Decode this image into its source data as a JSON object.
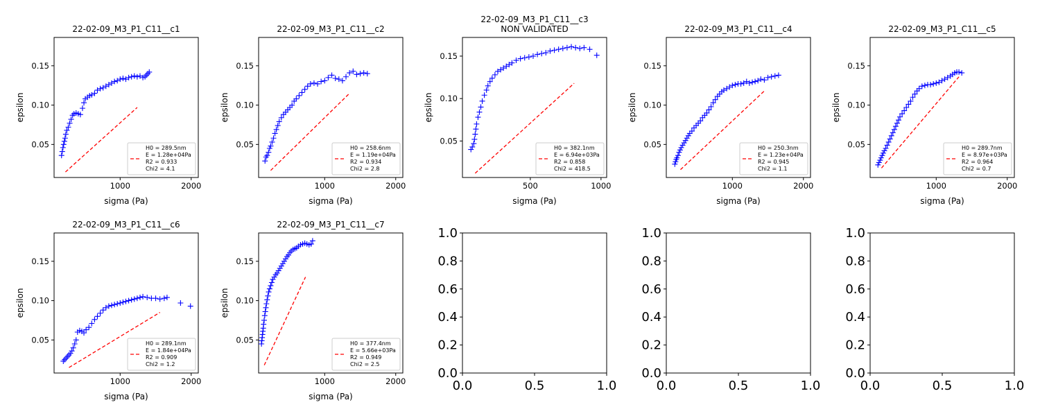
{
  "figure": {
    "colors": {
      "data": "#0000ff",
      "fit": "#ff0000",
      "axis": "#000000",
      "legend_border": "#cccccc"
    }
  },
  "chart_data": [
    {
      "type": "scatter",
      "title": "22-02-09_M3_P1_C11__c1",
      "xlabel": "sigma (Pa)",
      "ylabel": "epsilon",
      "xlim": [
        70,
        2100
      ],
      "ylim": [
        0.008,
        0.186
      ],
      "xticks": [
        1000,
        2000
      ],
      "xtick_labels": [
        "1000",
        "2000"
      ],
      "yticks": [
        0.05,
        0.1,
        0.15
      ],
      "ytick_labels": [
        "0.05",
        "0.10",
        "0.15"
      ],
      "legend": {
        "placement": "lower-right",
        "lines": [
          "H0 = 289.5nm",
          "E = 1.28e+04Pa",
          "R2 = 0.933",
          "Chi2 = 4.1"
        ]
      },
      "series": [
        {
          "kind": "points",
          "x": [
            175,
            185,
            195,
            205,
            215,
            225,
            235,
            250,
            270,
            290,
            310,
            330,
            350,
            380,
            410,
            440,
            470,
            490,
            510,
            540,
            570,
            600,
            640,
            680,
            720,
            760,
            800,
            840,
            880,
            920,
            960,
            1000,
            1040,
            1080,
            1120,
            1160,
            1200,
            1240,
            1280,
            1320,
            1350,
            1370,
            1390,
            1410
          ],
          "y": [
            0.036,
            0.041,
            0.046,
            0.05,
            0.054,
            0.058,
            0.063,
            0.068,
            0.072,
            0.077,
            0.082,
            0.087,
            0.089,
            0.09,
            0.089,
            0.088,
            0.096,
            0.103,
            0.108,
            0.11,
            0.112,
            0.113,
            0.115,
            0.119,
            0.121,
            0.122,
            0.124,
            0.126,
            0.128,
            0.13,
            0.131,
            0.133,
            0.134,
            0.133,
            0.135,
            0.136,
            0.137,
            0.136,
            0.137,
            0.135,
            0.136,
            0.138,
            0.14,
            0.142
          ]
        },
        {
          "kind": "fit",
          "x": [
            230,
            1240
          ],
          "y": [
            0.015,
            0.097
          ]
        }
      ]
    },
    {
      "type": "scatter",
      "title": "22-02-09_M3_P1_C11__c2",
      "xlabel": "sigma (Pa)",
      "ylabel": "epsilon",
      "xlim": [
        70,
        2100
      ],
      "ylim": [
        0.008,
        0.186
      ],
      "xticks": [
        1000,
        2000
      ],
      "xtick_labels": [
        "1000",
        "2000"
      ],
      "yticks": [
        0.05,
        0.1,
        0.15
      ],
      "ytick_labels": [
        "0.05",
        "0.10",
        "0.15"
      ],
      "legend": {
        "placement": "lower-right",
        "lines": [
          "H0 = 258.6nm",
          "E = 1.19e+04Pa",
          "R2 = 0.934",
          "Chi2 = 2.8"
        ]
      },
      "series": [
        {
          "kind": "points",
          "x": [
            160,
            175,
            190,
            210,
            225,
            240,
            260,
            280,
            300,
            320,
            340,
            360,
            390,
            420,
            450,
            480,
            510,
            540,
            570,
            600,
            640,
            680,
            720,
            760,
            800,
            850,
            900,
            950,
            1000,
            1050,
            1100,
            1150,
            1200,
            1250,
            1300,
            1350,
            1400,
            1450,
            1500,
            1550,
            1600
          ],
          "y": [
            0.029,
            0.034,
            0.036,
            0.04,
            0.045,
            0.048,
            0.053,
            0.058,
            0.064,
            0.069,
            0.074,
            0.079,
            0.084,
            0.088,
            0.091,
            0.094,
            0.097,
            0.1,
            0.105,
            0.108,
            0.112,
            0.116,
            0.12,
            0.124,
            0.127,
            0.128,
            0.127,
            0.13,
            0.131,
            0.135,
            0.138,
            0.134,
            0.133,
            0.131,
            0.136,
            0.141,
            0.143,
            0.139,
            0.14,
            0.141,
            0.14
          ]
        },
        {
          "kind": "fit",
          "x": [
            240,
            1350
          ],
          "y": [
            0.017,
            0.115
          ]
        }
      ]
    },
    {
      "type": "scatter",
      "title": "22-02-09_M3_P1_C11__c3",
      "subtitle": "NON VALIDATED",
      "xlabel": "sigma (Pa)",
      "ylabel": "epsilon",
      "xlim": [
        20,
        1040
      ],
      "ylim": [
        0.007,
        0.172
      ],
      "xticks": [
        500,
        1000
      ],
      "xtick_labels": [
        "500",
        "1000"
      ],
      "yticks": [
        0.05,
        0.1,
        0.15
      ],
      "ytick_labels": [
        "0.05",
        "0.10",
        "0.15"
      ],
      "legend": {
        "placement": "lower-right",
        "lines": [
          "H0 = 382.1nm",
          "E = 6.94e+03Pa",
          "R2 = 0.858",
          "Chi2 = 418.5"
        ]
      },
      "series": [
        {
          "kind": "points",
          "x": [
            80,
            90,
            100,
            105,
            110,
            115,
            120,
            130,
            140,
            150,
            160,
            175,
            190,
            200,
            215,
            230,
            250,
            270,
            290,
            310,
            330,
            350,
            370,
            400,
            430,
            460,
            490,
            520,
            550,
            580,
            610,
            640,
            670,
            700,
            730,
            760,
            790,
            820,
            850,
            880,
            920,
            970
          ],
          "y": [
            0.04,
            0.043,
            0.047,
            0.052,
            0.058,
            0.064,
            0.07,
            0.078,
            0.084,
            0.09,
            0.097,
            0.104,
            0.11,
            0.115,
            0.12,
            0.124,
            0.128,
            0.132,
            0.134,
            0.136,
            0.138,
            0.14,
            0.142,
            0.145,
            0.147,
            0.148,
            0.149,
            0.15,
            0.152,
            0.153,
            0.154,
            0.156,
            0.157,
            0.158,
            0.159,
            0.16,
            0.161,
            0.16,
            0.159,
            0.16,
            0.158,
            0.151
          ]
        },
        {
          "kind": "fit",
          "x": [
            110,
            810
          ],
          "y": [
            0.012,
            0.118
          ]
        }
      ]
    },
    {
      "type": "scatter",
      "title": "22-02-09_M3_P1_C11__c4",
      "xlabel": "sigma (Pa)",
      "ylabel": "epsilon",
      "xlim": [
        70,
        2100
      ],
      "ylim": [
        0.008,
        0.186
      ],
      "xticks": [
        1000,
        2000
      ],
      "xtick_labels": [
        "1000",
        "2000"
      ],
      "yticks": [
        0.05,
        0.1,
        0.15
      ],
      "ytick_labels": [
        "0.05",
        "0.10",
        "0.15"
      ],
      "legend": {
        "placement": "lower-right",
        "lines": [
          "H0 = 250.3nm",
          "E = 1.23e+04Pa",
          "R2 = 0.945",
          "Chi2 = 1.1"
        ]
      },
      "series": [
        {
          "kind": "points",
          "x": [
            190,
            200,
            210,
            220,
            235,
            250,
            265,
            280,
            300,
            320,
            340,
            360,
            380,
            400,
            430,
            460,
            490,
            520,
            550,
            580,
            610,
            640,
            670,
            700,
            730,
            760,
            790,
            820,
            850,
            880,
            920,
            960,
            1000,
            1040,
            1080,
            1120,
            1160,
            1200,
            1240,
            1280,
            1320,
            1360,
            1400,
            1450,
            1500,
            1550,
            1600,
            1650
          ],
          "y": [
            0.025,
            0.028,
            0.031,
            0.033,
            0.036,
            0.04,
            0.043,
            0.046,
            0.049,
            0.052,
            0.055,
            0.058,
            0.061,
            0.064,
            0.067,
            0.071,
            0.074,
            0.077,
            0.08,
            0.084,
            0.087,
            0.09,
            0.094,
            0.098,
            0.103,
            0.107,
            0.111,
            0.114,
            0.117,
            0.119,
            0.121,
            0.123,
            0.125,
            0.126,
            0.127,
            0.127,
            0.128,
            0.13,
            0.128,
            0.129,
            0.13,
            0.131,
            0.133,
            0.132,
            0.135,
            0.136,
            0.137,
            0.138
          ]
        },
        {
          "kind": "fit",
          "x": [
            270,
            1450
          ],
          "y": [
            0.018,
            0.118
          ]
        }
      ]
    },
    {
      "type": "scatter",
      "title": "22-02-09_M3_P1_C11__c5",
      "xlabel": "sigma (Pa)",
      "ylabel": "epsilon",
      "xlim": [
        70,
        2100
      ],
      "ylim": [
        0.008,
        0.186
      ],
      "xticks": [
        1000,
        2000
      ],
      "xtick_labels": [
        "1000",
        "2000"
      ],
      "yticks": [
        0.05,
        0.1,
        0.15
      ],
      "ytick_labels": [
        "0.05",
        "0.10",
        "0.15"
      ],
      "legend": {
        "placement": "lower-right",
        "lines": [
          "H0 = 289.7nm",
          "E = 8.97e+03Pa",
          "R2 = 0.964",
          "Chi2 = 0.7"
        ]
      },
      "series": [
        {
          "kind": "points",
          "x": [
            180,
            195,
            210,
            225,
            240,
            255,
            270,
            290,
            310,
            330,
            350,
            370,
            390,
            410,
            430,
            450,
            470,
            490,
            520,
            550,
            580,
            610,
            640,
            670,
            700,
            730,
            760,
            800,
            840,
            880,
            920,
            960,
            1000,
            1040,
            1080,
            1120,
            1160,
            1200,
            1230,
            1260,
            1290,
            1320,
            1360
          ],
          "y": [
            0.024,
            0.027,
            0.03,
            0.033,
            0.036,
            0.039,
            0.042,
            0.045,
            0.049,
            0.053,
            0.057,
            0.061,
            0.065,
            0.069,
            0.073,
            0.077,
            0.081,
            0.085,
            0.089,
            0.093,
            0.097,
            0.101,
            0.105,
            0.11,
            0.114,
            0.118,
            0.121,
            0.124,
            0.125,
            0.126,
            0.126,
            0.127,
            0.128,
            0.129,
            0.131,
            0.133,
            0.135,
            0.137,
            0.139,
            0.141,
            0.142,
            0.142,
            0.141
          ]
        },
        {
          "kind": "fit",
          "x": [
            230,
            1320
          ],
          "y": [
            0.02,
            0.136
          ]
        }
      ]
    },
    {
      "type": "scatter",
      "title": "22-02-09_M3_P1_C11__c6",
      "xlabel": "sigma (Pa)",
      "ylabel": "epsilon",
      "xlim": [
        70,
        2100
      ],
      "ylim": [
        0.008,
        0.186
      ],
      "xticks": [
        1000,
        2000
      ],
      "xtick_labels": [
        "1000",
        "2000"
      ],
      "yticks": [
        0.05,
        0.1,
        0.15
      ],
      "ytick_labels": [
        "0.05",
        "0.10",
        "0.15"
      ],
      "legend": {
        "placement": "lower-right",
        "lines": [
          "H0 = 289.1nm",
          "E = 1.84e+04Pa",
          "R2 = 0.909",
          "Chi2 = 1.2"
        ]
      },
      "series": [
        {
          "kind": "points",
          "x": [
            200,
            220,
            240,
            260,
            280,
            300,
            320,
            340,
            360,
            380,
            400,
            430,
            460,
            490,
            520,
            560,
            600,
            640,
            680,
            720,
            760,
            800,
            840,
            880,
            920,
            960,
            1000,
            1040,
            1080,
            1120,
            1160,
            1200,
            1240,
            1280,
            1320,
            1380,
            1440,
            1500,
            1560,
            1620,
            1660,
            1850,
            1990
          ],
          "y": [
            0.023,
            0.025,
            0.027,
            0.029,
            0.031,
            0.033,
            0.036,
            0.04,
            0.045,
            0.05,
            0.06,
            0.062,
            0.061,
            0.059,
            0.063,
            0.066,
            0.071,
            0.076,
            0.08,
            0.084,
            0.088,
            0.091,
            0.093,
            0.094,
            0.095,
            0.096,
            0.097,
            0.098,
            0.099,
            0.1,
            0.101,
            0.102,
            0.103,
            0.104,
            0.105,
            0.104,
            0.103,
            0.103,
            0.102,
            0.103,
            0.104,
            0.097,
            0.093
          ]
        },
        {
          "kind": "fit",
          "x": [
            280,
            1560
          ],
          "y": [
            0.015,
            0.085
          ]
        }
      ]
    },
    {
      "type": "scatter",
      "title": "22-02-09_M3_P1_C11__c7",
      "xlabel": "sigma (Pa)",
      "ylabel": "epsilon",
      "xlim": [
        70,
        2100
      ],
      "ylim": [
        0.008,
        0.186
      ],
      "xticks": [
        1000,
        2000
      ],
      "xtick_labels": [
        "1000",
        "2000"
      ],
      "yticks": [
        0.05,
        0.1,
        0.15
      ],
      "ytick_labels": [
        "0.05",
        "0.10",
        "0.15"
      ],
      "legend": {
        "placement": "lower-right",
        "lines": [
          "H0 = 377.4nm",
          "E = 5.66e+03Pa",
          "R2 = 0.949",
          "Chi2 = 2.5"
        ]
      },
      "series": [
        {
          "kind": "points",
          "x": [
            110,
            115,
            120,
            125,
            130,
            135,
            140,
            148,
            156,
            164,
            172,
            180,
            190,
            200,
            212,
            225,
            240,
            255,
            270,
            290,
            310,
            330,
            350,
            370,
            390,
            410,
            430,
            450,
            470,
            490,
            510,
            530,
            555,
            580,
            605,
            630,
            660,
            690,
            720,
            750,
            780,
            810,
            830
          ],
          "y": [
            0.045,
            0.049,
            0.053,
            0.057,
            0.061,
            0.065,
            0.07,
            0.075,
            0.081,
            0.086,
            0.091,
            0.096,
            0.101,
            0.106,
            0.111,
            0.115,
            0.119,
            0.123,
            0.127,
            0.13,
            0.133,
            0.135,
            0.138,
            0.141,
            0.144,
            0.147,
            0.15,
            0.153,
            0.156,
            0.158,
            0.161,
            0.163,
            0.165,
            0.166,
            0.167,
            0.169,
            0.171,
            0.172,
            0.173,
            0.172,
            0.171,
            0.172,
            0.176
          ]
        },
        {
          "kind": "fit",
          "x": [
            150,
            730
          ],
          "y": [
            0.018,
            0.13
          ]
        }
      ]
    },
    {
      "type": "scatter",
      "empty": true,
      "xlim": [
        0,
        1
      ],
      "ylim": [
        0,
        1
      ],
      "xticks": [
        0.0,
        0.5,
        1.0
      ],
      "xtick_labels": [
        "0.0",
        "0.5",
        "1.0"
      ],
      "yticks": [
        0.0,
        0.2,
        0.4,
        0.6,
        0.8,
        1.0
      ],
      "ytick_labels": [
        "0.0",
        "0.2",
        "0.4",
        "0.6",
        "0.8",
        "1.0"
      ]
    },
    {
      "type": "scatter",
      "empty": true,
      "xlim": [
        0,
        1
      ],
      "ylim": [
        0,
        1
      ],
      "xticks": [
        0.0,
        0.5,
        1.0
      ],
      "xtick_labels": [
        "0.0",
        "0.5",
        "1.0"
      ],
      "yticks": [
        0.0,
        0.2,
        0.4,
        0.6,
        0.8,
        1.0
      ],
      "ytick_labels": [
        "0.0",
        "0.2",
        "0.4",
        "0.6",
        "0.8",
        "1.0"
      ]
    },
    {
      "type": "scatter",
      "empty": true,
      "xlim": [
        0,
        1
      ],
      "ylim": [
        0,
        1
      ],
      "xticks": [
        0.0,
        0.5,
        1.0
      ],
      "xtick_labels": [
        "0.0",
        "0.5",
        "1.0"
      ],
      "yticks": [
        0.0,
        0.2,
        0.4,
        0.6,
        0.8,
        1.0
      ],
      "ytick_labels": [
        "0.0",
        "0.2",
        "0.4",
        "0.6",
        "0.8",
        "1.0"
      ]
    }
  ]
}
